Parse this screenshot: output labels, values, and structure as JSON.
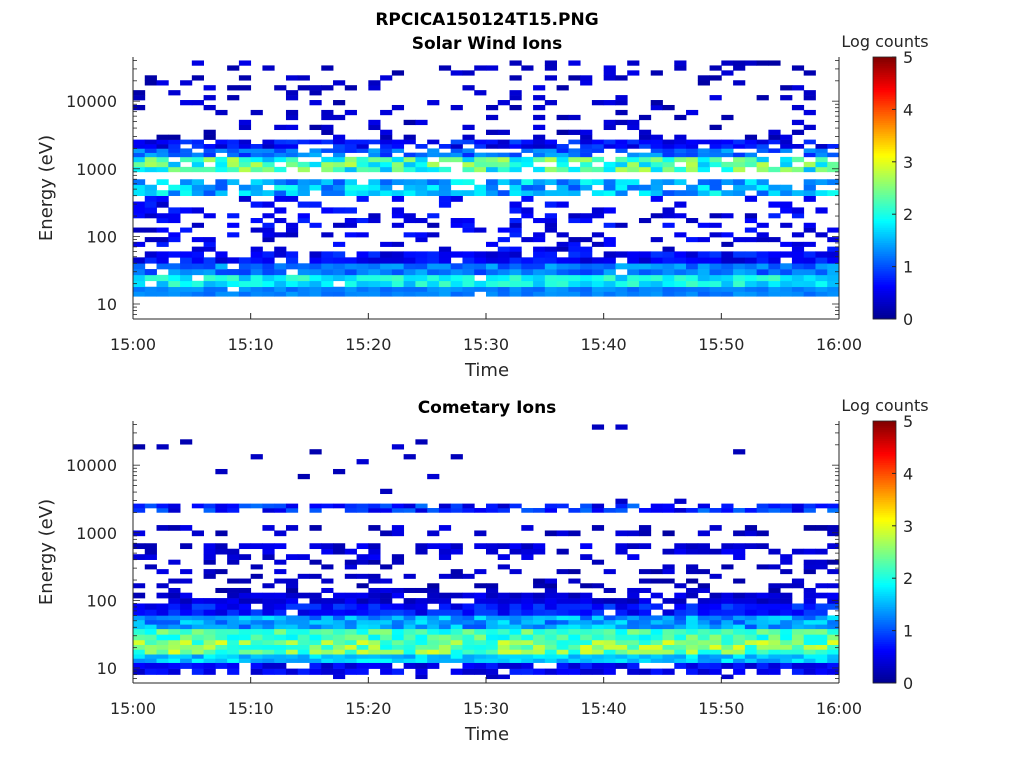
{
  "figure": {
    "filename_title": "RPCICA150124T15.PNG"
  },
  "colors": {
    "axis": "#262626",
    "background": "#ffffff",
    "colormap": "jet",
    "colormap_stops": [
      "#00008f",
      "#0000ff",
      "#0080ff",
      "#00ffff",
      "#80ff80",
      "#ffff00",
      "#ff8000",
      "#ff0000",
      "#800000"
    ]
  },
  "chart_data": [
    {
      "type": "heatmap",
      "title": "Solar Wind Ions",
      "xlabel": "Time",
      "ylabel": "Energy (eV)",
      "xlim": [
        "15:00",
        "16:00"
      ],
      "x_ticks": [
        "15:00",
        "15:10",
        "15:20",
        "15:30",
        "15:40",
        "15:50",
        "16:00"
      ],
      "y_scale": "log",
      "ylim": [
        6,
        45000
      ],
      "y_ticks": [
        "10",
        "100",
        "1000",
        "10000"
      ],
      "colorbar": {
        "label": "Log counts",
        "range": [
          0,
          5
        ],
        "ticks": [
          "0",
          "1",
          "2",
          "3",
          "4",
          "5"
        ]
      },
      "time_bins": 60,
      "bands": [
        {
          "e_min": 13,
          "e_max": 18,
          "level": [
            1.1,
            1.4
          ],
          "fill": 0.98
        },
        {
          "e_min": 18,
          "e_max": 27,
          "level": [
            1.5,
            2.2
          ],
          "fill": 0.95
        },
        {
          "e_min": 27,
          "e_max": 40,
          "level": [
            0.9,
            1.5
          ],
          "fill": 0.95
        },
        {
          "e_min": 40,
          "e_max": 60,
          "level": [
            0.3,
            0.9
          ],
          "fill": 0.85
        },
        {
          "e_min": 60,
          "e_max": 220,
          "level": [
            0.2,
            0.8
          ],
          "fill": 0.35
        },
        {
          "e_min": 220,
          "e_max": 400,
          "level": [
            0.3,
            0.8
          ],
          "fill": 0.3
        },
        {
          "e_min": 400,
          "e_max": 700,
          "level": [
            1.0,
            2.0
          ],
          "fill": 0.8
        },
        {
          "e_min": 900,
          "e_max": 1500,
          "level": [
            1.5,
            2.8
          ],
          "fill": 0.85
        },
        {
          "e_min": 1500,
          "e_max": 2000,
          "level": [
            0.8,
            1.5
          ],
          "fill": 0.7
        },
        {
          "e_min": 2000,
          "e_max": 2700,
          "level": [
            0.3,
            1.0
          ],
          "fill": 0.75
        },
        {
          "e_min": 2700,
          "e_max": 40000,
          "level": [
            0.1,
            0.5
          ],
          "fill": 0.18
        }
      ]
    },
    {
      "type": "heatmap",
      "title": "Cometary Ions",
      "xlabel": "Time",
      "ylabel": "Energy (eV)",
      "xlim": [
        "15:00",
        "16:00"
      ],
      "x_ticks": [
        "15:00",
        "15:10",
        "15:20",
        "15:30",
        "15:40",
        "15:50",
        "16:00"
      ],
      "y_scale": "log",
      "ylim": [
        6,
        45000
      ],
      "y_ticks": [
        "10",
        "100",
        "1000",
        "10000"
      ],
      "colorbar": {
        "label": "Log counts",
        "range": [
          0,
          5
        ],
        "ticks": [
          "0",
          "1",
          "2",
          "3",
          "4",
          "5"
        ]
      },
      "time_bins": 60,
      "bands": [
        {
          "e_min": 6,
          "e_max": 8,
          "level": [
            0.2,
            0.5
          ],
          "fill": 0.05
        },
        {
          "e_min": 8,
          "e_max": 12,
          "level": [
            0.3,
            0.8
          ],
          "fill": 0.75
        },
        {
          "e_min": 12,
          "e_max": 16,
          "level": [
            1.3,
            1.9
          ],
          "fill": 1.0
        },
        {
          "e_min": 16,
          "e_max": 26,
          "level": [
            1.9,
            3.0
          ],
          "fill": 1.0
        },
        {
          "e_min": 26,
          "e_max": 38,
          "level": [
            1.8,
            2.6
          ],
          "fill": 1.0
        },
        {
          "e_min": 38,
          "e_max": 60,
          "level": [
            1.0,
            1.8
          ],
          "fill": 1.0
        },
        {
          "e_min": 60,
          "e_max": 90,
          "level": [
            0.4,
            1.0
          ],
          "fill": 0.95
        },
        {
          "e_min": 90,
          "e_max": 130,
          "level": [
            0.2,
            0.6
          ],
          "fill": 0.7
        },
        {
          "e_min": 130,
          "e_max": 400,
          "level": [
            0.1,
            0.5
          ],
          "fill": 0.3
        },
        {
          "e_min": 400,
          "e_max": 700,
          "level": [
            0.2,
            0.6
          ],
          "fill": 0.45
        },
        {
          "e_min": 900,
          "e_max": 1300,
          "level": [
            0.1,
            0.5
          ],
          "fill": 0.35
        },
        {
          "e_min": 2000,
          "e_max": 2700,
          "level": [
            0.3,
            1.2
          ],
          "fill": 0.8
        },
        {
          "e_min": 2700,
          "e_max": 40000,
          "level": [
            0.1,
            0.4
          ],
          "fill": 0.02
        }
      ]
    }
  ]
}
